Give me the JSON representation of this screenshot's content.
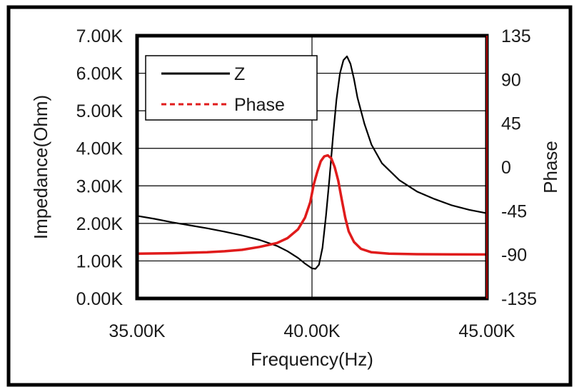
{
  "chart_data": {
    "type": "line",
    "xlabel": "Frequency(Hz)",
    "ylabel_left": "Impedance(Ohm)",
    "ylabel_right": "Phase",
    "xlim": [
      35000,
      45000
    ],
    "ylim_left": [
      0,
      7000
    ],
    "ylim_right": [
      -135,
      135
    ],
    "x_ticks": [
      {
        "value": 35000,
        "label": "35.00K"
      },
      {
        "value": 40000,
        "label": "40.00K"
      },
      {
        "value": 45000,
        "label": "45.00K"
      }
    ],
    "y_ticks_left": [
      {
        "value": 0,
        "label": "0.00K"
      },
      {
        "value": 1000,
        "label": "1.00K"
      },
      {
        "value": 2000,
        "label": "2.00K"
      },
      {
        "value": 3000,
        "label": "3.00K"
      },
      {
        "value": 4000,
        "label": "4.00K"
      },
      {
        "value": 5000,
        "label": "5.00K"
      },
      {
        "value": 6000,
        "label": "6.00K"
      },
      {
        "value": 7000,
        "label": "7.00K"
      }
    ],
    "y_ticks_right": [
      {
        "value": -135,
        "label": "-135"
      },
      {
        "value": -90,
        "label": "-90"
      },
      {
        "value": -45,
        "label": "-45"
      },
      {
        "value": 0,
        "label": "0"
      },
      {
        "value": 45,
        "label": "45"
      },
      {
        "value": 90,
        "label": "90"
      },
      {
        "value": 135,
        "label": "135"
      }
    ],
    "grid": {
      "horizontal": true,
      "vertical_lines_at": [
        40000
      ]
    },
    "legend_position": "top-left",
    "series": [
      {
        "name": "Z",
        "axis": "left",
        "color": "#000000",
        "style": "solid",
        "points": [
          [
            35000,
            2200
          ],
          [
            35500,
            2120
          ],
          [
            36000,
            2030
          ],
          [
            36500,
            1950
          ],
          [
            37000,
            1870
          ],
          [
            37500,
            1780
          ],
          [
            38000,
            1680
          ],
          [
            38500,
            1560
          ],
          [
            39000,
            1400
          ],
          [
            39300,
            1260
          ],
          [
            39600,
            1080
          ],
          [
            39800,
            930
          ],
          [
            40000,
            800
          ],
          [
            40100,
            790
          ],
          [
            40200,
            900
          ],
          [
            40300,
            1350
          ],
          [
            40400,
            2200
          ],
          [
            40500,
            3200
          ],
          [
            40600,
            4300
          ],
          [
            40700,
            5300
          ],
          [
            40800,
            6000
          ],
          [
            40900,
            6350
          ],
          [
            41000,
            6450
          ],
          [
            41100,
            6250
          ],
          [
            41200,
            5850
          ],
          [
            41300,
            5350
          ],
          [
            41500,
            4650
          ],
          [
            41700,
            4100
          ],
          [
            42000,
            3600
          ],
          [
            42500,
            3150
          ],
          [
            43000,
            2850
          ],
          [
            43500,
            2650
          ],
          [
            44000,
            2480
          ],
          [
            44500,
            2360
          ],
          [
            45000,
            2270
          ]
        ]
      },
      {
        "name": "Phase",
        "axis": "right",
        "color": "#e01b1b",
        "style": "solid",
        "points": [
          [
            35000,
            -89
          ],
          [
            36000,
            -88.5
          ],
          [
            37000,
            -87.5
          ],
          [
            37500,
            -86.5
          ],
          [
            38000,
            -85
          ],
          [
            38500,
            -82
          ],
          [
            39000,
            -78
          ],
          [
            39300,
            -73
          ],
          [
            39600,
            -64
          ],
          [
            39800,
            -52
          ],
          [
            39950,
            -36
          ],
          [
            40050,
            -18
          ],
          [
            40150,
            -5
          ],
          [
            40250,
            6
          ],
          [
            40350,
            11
          ],
          [
            40450,
            12
          ],
          [
            40550,
            9
          ],
          [
            40650,
            0
          ],
          [
            40750,
            -14
          ],
          [
            40850,
            -33
          ],
          [
            40950,
            -52
          ],
          [
            41050,
            -66
          ],
          [
            41200,
            -77
          ],
          [
            41400,
            -84
          ],
          [
            41700,
            -87.5
          ],
          [
            42200,
            -89
          ],
          [
            43000,
            -89.5
          ],
          [
            44000,
            -89.7
          ],
          [
            45000,
            -89.8
          ]
        ]
      }
    ]
  }
}
